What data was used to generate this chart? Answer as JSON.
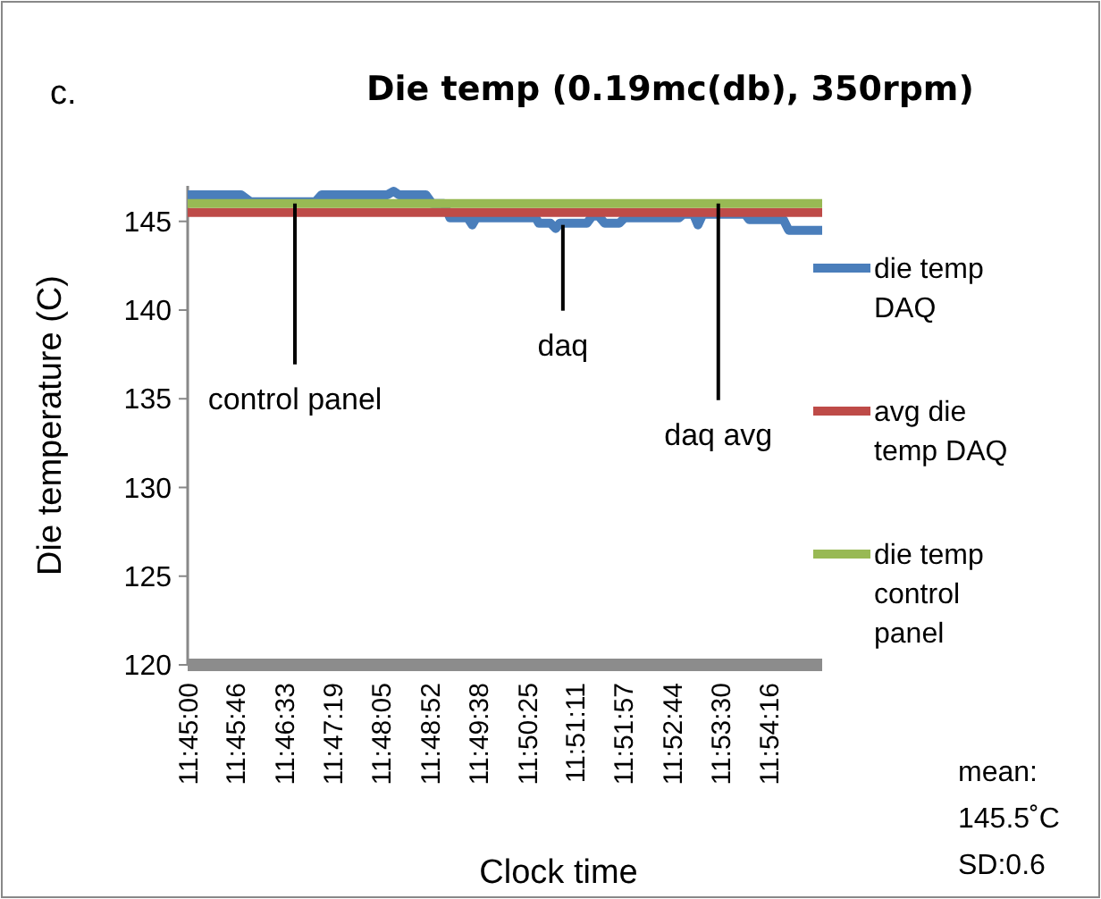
{
  "chart_data": {
    "type": "line",
    "title": "Die temp (0.19mc(db), 350rpm)",
    "xlabel": "Clock time",
    "ylabel": "Die temperature (C)",
    "annotations": [
      "c.",
      {
        "text": "control panel",
        "x": 11.7785,
        "y": 146
      },
      {
        "text": "daq",
        "x": 11.8497,
        "y": 144.8
      },
      {
        "text": "daq avg",
        "x": 11.891,
        "y": 146
      },
      "mean: 145.5˚C SD:0.6"
    ],
    "xlim": [
      11.75,
      11.9186
    ],
    "ylim": [
      120,
      147
    ],
    "xticks": [
      {
        "value": 11.75,
        "label": "11:45:00"
      },
      {
        "value": 11.762778,
        "label": "11:45:46"
      },
      {
        "value": 11.775833,
        "label": "11:46:33"
      },
      {
        "value": 11.788611,
        "label": "11:47:19"
      },
      {
        "value": 11.801389,
        "label": "11:48:05"
      },
      {
        "value": 11.814444,
        "label": "11:48:52"
      },
      {
        "value": 11.827222,
        "label": "11:49:38"
      },
      {
        "value": 11.840278,
        "label": "11:50:25"
      },
      {
        "value": 11.853056,
        "label": "11:51:11"
      },
      {
        "value": 11.865833,
        "label": "11:51:57"
      },
      {
        "value": 11.878889,
        "label": "11:52:44"
      },
      {
        "value": 11.891667,
        "label": "11:53:30"
      },
      {
        "value": 11.904444,
        "label": "11:54:16"
      }
    ],
    "yticks": [
      120,
      125,
      130,
      135,
      140,
      145
    ],
    "grid": false,
    "legend": "right",
    "marker": "none",
    "line_style": "solid",
    "series": [
      {
        "name": "die temp DAQ",
        "color": "#4a7ebb",
        "x": [
          11.75,
          11.7642,
          11.7667,
          11.7839,
          11.7856,
          11.8031,
          11.8047,
          11.8061,
          11.8133,
          11.815,
          11.8181,
          11.8197,
          11.8244,
          11.8256,
          11.8267,
          11.8425,
          11.8433,
          11.8464,
          11.8478,
          11.8489,
          11.8561,
          11.8575,
          11.8592,
          11.8608,
          11.8647,
          11.8661,
          11.8806,
          11.8817,
          11.8844,
          11.8856,
          11.8869,
          11.8981,
          11.8992,
          11.9083,
          11.9097,
          11.9186
        ],
        "values": [
          146.5,
          146.5,
          146.1,
          146.1,
          146.5,
          146.5,
          146.7,
          146.5,
          146.5,
          146.0,
          146.0,
          145.2,
          145.2,
          144.8,
          145.2,
          145.2,
          144.9,
          144.9,
          144.6,
          144.9,
          144.9,
          145.3,
          145.3,
          144.9,
          144.9,
          145.2,
          145.2,
          145.4,
          145.4,
          144.8,
          145.4,
          145.4,
          145.1,
          145.1,
          144.5,
          144.5
        ]
      },
      {
        "name": "avg die temp DAQ",
        "color": "#be4b48",
        "x": [
          11.75,
          11.9186
        ],
        "values": [
          145.5,
          145.5
        ]
      },
      {
        "name": "die temp control panel",
        "color": "#98b954",
        "x": [
          11.75,
          11.9186
        ],
        "values": [
          146,
          146
        ]
      }
    ]
  }
}
